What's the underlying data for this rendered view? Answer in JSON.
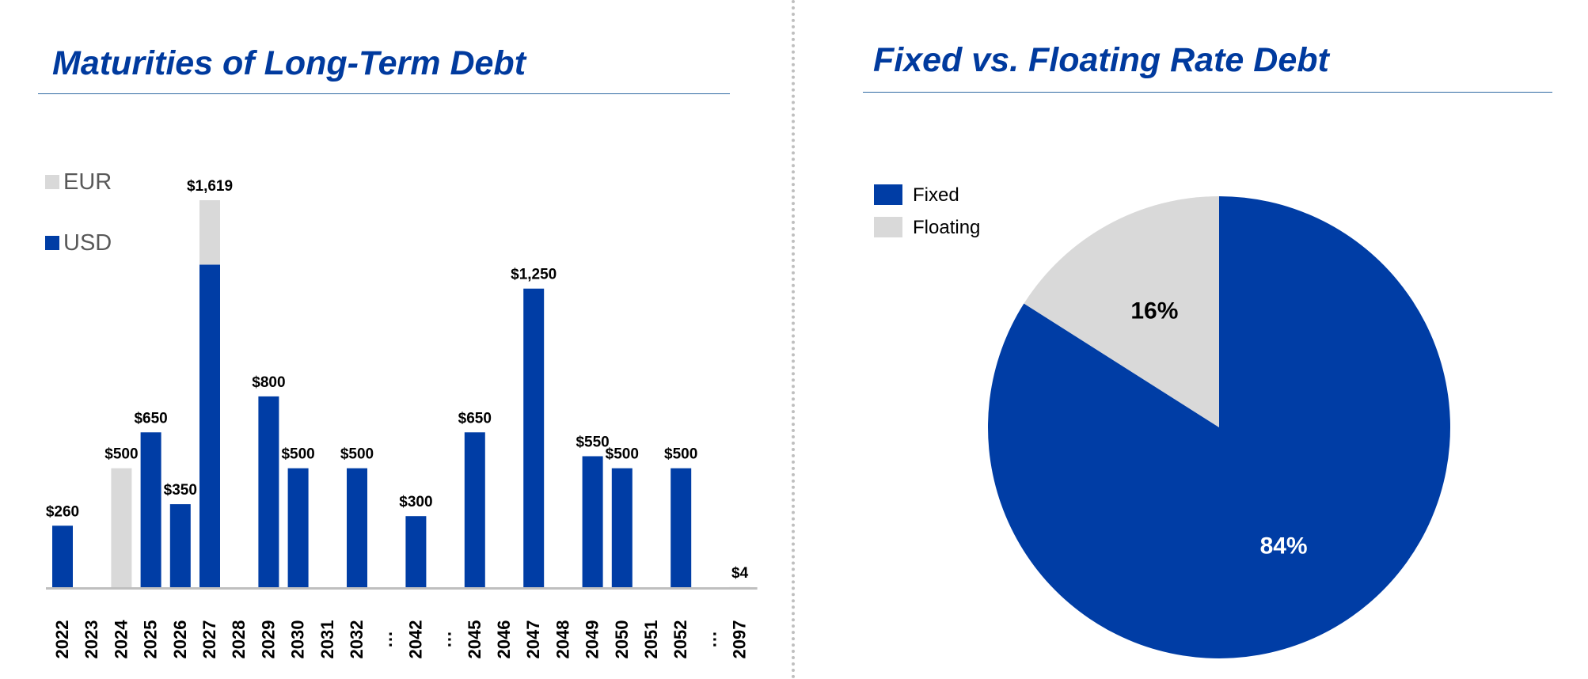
{
  "colors": {
    "usd": "#003da5",
    "eur": "#d9d9d9",
    "title": "#003a9e",
    "rule": "#2f6aa3",
    "text": "#000000",
    "legend_text": "#595959"
  },
  "left_panel": {
    "title": "Maturities of Long-Term Debt"
  },
  "right_panel": {
    "title": "Fixed vs. Floating Rate Debt"
  },
  "chart_data": [
    {
      "type": "bar",
      "stacked": true,
      "title": "Maturities of Long-Term Debt",
      "categories": [
        "2022",
        "2023",
        "2024",
        "2025",
        "2026",
        "2027",
        "2028",
        "2029",
        "2030",
        "2031",
        "2032",
        "…",
        "2042",
        "…",
        "2045",
        "2046",
        "2047",
        "2048",
        "2049",
        "2050",
        "2051",
        "2052",
        "…",
        "2097"
      ],
      "series": [
        {
          "name": "USD",
          "color": "#003da5",
          "values": [
            260,
            0,
            0,
            650,
            350,
            1350,
            0,
            800,
            500,
            0,
            500,
            0,
            300,
            0,
            650,
            0,
            1250,
            0,
            550,
            500,
            0,
            500,
            0,
            0
          ]
        },
        {
          "name": "EUR",
          "color": "#d9d9d9",
          "values": [
            0,
            0,
            500,
            0,
            0,
            269,
            0,
            0,
            0,
            0,
            0,
            0,
            0,
            0,
            0,
            0,
            0,
            0,
            0,
            0,
            0,
            0,
            0,
            4
          ]
        }
      ],
      "data_labels": [
        "$260",
        "",
        "$500",
        "$650",
        "$350",
        "$1,619",
        "",
        "$800",
        "$500",
        "",
        "$500",
        "",
        "$300",
        "",
        "$650",
        "",
        "$1,250",
        "",
        "$550",
        "$500",
        "",
        "$500",
        "",
        "$4"
      ],
      "legend_order": [
        "EUR",
        "USD"
      ],
      "legend_position": "top-left",
      "ylim": [
        0,
        1700
      ],
      "grid": false
    },
    {
      "type": "pie",
      "title": "Fixed vs. Floating Rate Debt",
      "slices": [
        {
          "name": "Fixed",
          "value": 84,
          "label": "84%",
          "color": "#003da5"
        },
        {
          "name": "Floating",
          "value": 16,
          "label": "16%",
          "color": "#d9d9d9"
        }
      ],
      "start": "12 o'clock, clockwise",
      "legend_position": "top-left"
    }
  ]
}
